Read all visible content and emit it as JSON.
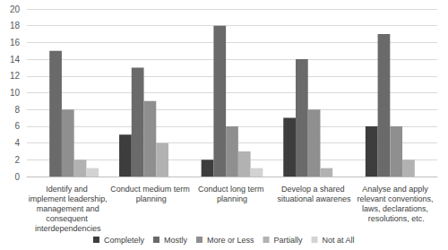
{
  "chart_data": {
    "type": "bar",
    "categories": [
      "Identify and implement leadership, management and consequent interdependencies",
      "Conduct medium term planning",
      "Conduct long term planning",
      "Develop a shared situational awarenes",
      "Analyse and apply relevant conventions, laws, declarations, resolutions, etc."
    ],
    "series": [
      {
        "name": "Completely",
        "color": "#3d3d3d",
        "values": [
          0,
          5,
          2,
          7,
          6
        ]
      },
      {
        "name": "Mostly",
        "color": "#6a6a6a",
        "values": [
          15,
          13,
          18,
          14,
          17
        ]
      },
      {
        "name": "More or Less",
        "color": "#8f8f8f",
        "values": [
          8,
          9,
          6,
          8,
          6
        ]
      },
      {
        "name": "Partially",
        "color": "#b2b2b2",
        "values": [
          2,
          4,
          3,
          1,
          2
        ]
      },
      {
        "name": "Not at All",
        "color": "#d3d3d3",
        "values": [
          1,
          0,
          1,
          0,
          0
        ]
      }
    ],
    "ylim": [
      0,
      20
    ],
    "yticks": [
      0,
      2,
      4,
      6,
      8,
      10,
      12,
      14,
      16,
      18,
      20
    ],
    "grid": true,
    "legend": "bottom"
  }
}
